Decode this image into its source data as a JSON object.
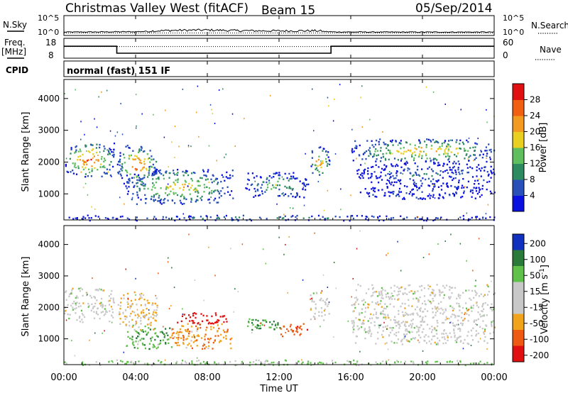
{
  "header": {
    "station": "Christmas Valley West (fitACF)",
    "beam": "Beam 15",
    "date": "05/Sep/2014"
  },
  "panel_labels": {
    "nsky": "N.Sky",
    "nsearch": "N.Search",
    "freq": "Freq.",
    "freq_unit": "[MHz]",
    "nave": "Nave",
    "cpid": "CPID",
    "cpid_value": "normal (fast) 151 IF"
  },
  "axes": {
    "time_label": "Time UT",
    "time_ticks": [
      "00:00",
      "04:00",
      "08:00",
      "12:00",
      "16:00",
      "20:00",
      "00:00"
    ],
    "range_label": "Slant Range [km]",
    "range_ticks": [
      "1000",
      "2000",
      "3000",
      "4000"
    ],
    "noise_ticks_left": [
      "10^5",
      "10^0"
    ],
    "noise_ticks_right": [
      "10^5",
      "10^0"
    ],
    "freq_ticks_left": [
      "18",
      "8"
    ],
    "nave_ticks_right": [
      "60",
      "0"
    ]
  },
  "colors": {
    "power": [
      "#0a10e0",
      "#2850b8",
      "#2e8a60",
      "#5fbf5f",
      "#e8cf20",
      "#f39a20",
      "#f06010",
      "#e01010"
    ],
    "velocity": [
      "#1030c0",
      "#2a7a3a",
      "#5fc14a",
      "#c8c8c8",
      "#c8c8c8",
      "#f1a31b",
      "#ef5a12",
      "#e01010"
    ]
  },
  "colorbars": {
    "power": {
      "label": "Power [dB]",
      "ticks": [
        "4",
        "8",
        "12",
        "16",
        "20",
        "24",
        "28"
      ]
    },
    "velocity": {
      "label": "Velocity [m s",
      "label_sup": "-1",
      "label_end": "]",
      "ticks": [
        "200",
        "100",
        "50",
        "15",
        "-15",
        "-50",
        "-100",
        "-200"
      ]
    }
  },
  "chart_data": [
    {
      "type": "line",
      "name": "noise-panel",
      "x_range_hours": [
        0,
        24
      ],
      "series": [
        {
          "name": "N.Sky",
          "style": "solid",
          "x": [
            0,
            2,
            4,
            6,
            8,
            10,
            12,
            14,
            15,
            18,
            20,
            24
          ],
          "log10_y": [
            0.3,
            0.35,
            0.4,
            0.7,
            0.8,
            0.6,
            0.55,
            0.6,
            0.35,
            0.3,
            0.3,
            0.3
          ]
        },
        {
          "name": "N.Search",
          "style": "dotted",
          "x": [
            0,
            24
          ],
          "log10_y": [
            0.1,
            0.1
          ]
        }
      ]
    },
    {
      "type": "line",
      "name": "frequency-panel",
      "x_range_hours": [
        0,
        24
      ],
      "ylim_freq": [
        8,
        18
      ],
      "ylim_nave": [
        0,
        60
      ],
      "series": [
        {
          "name": "Freq.",
          "style": "solid",
          "x": [
            0,
            2.95,
            2.95,
            14.9,
            14.9,
            24
          ],
          "y": [
            14,
            14,
            10.5,
            10.5,
            14,
            14
          ]
        },
        {
          "name": "Nave",
          "style": "dotted",
          "x": [
            0,
            24
          ],
          "y": [
            35,
            35
          ]
        }
      ]
    },
    {
      "type": "heatmap",
      "name": "power-panel",
      "xlabel": "Time UT",
      "ylabel": "Slant Range [km]",
      "xlim_hours": [
        0,
        24
      ],
      "ylim_km": [
        180,
        4600
      ],
      "zlabel": "Power [dB]",
      "zlim": [
        0,
        32
      ],
      "regions": [
        {
          "x0": 0.0,
          "x1": 2.8,
          "y0": 1550,
          "y1": 2650,
          "peak_db": 30
        },
        {
          "x0": 2.95,
          "x1": 5.2,
          "y0": 1300,
          "y1": 2550,
          "peak_db": 29
        },
        {
          "x0": 3.4,
          "x1": 9.4,
          "y0": 700,
          "y1": 1800,
          "peak_db": 22
        },
        {
          "x0": 10.0,
          "x1": 13.6,
          "y0": 900,
          "y1": 1700,
          "peak_db": 14
        },
        {
          "x0": 13.7,
          "x1": 14.8,
          "y0": 1600,
          "y1": 2500,
          "peak_db": 26
        },
        {
          "x0": 16.0,
          "x1": 24.0,
          "y0": 2000,
          "y1": 2750,
          "peak_db": 24
        },
        {
          "x0": 16.3,
          "x1": 24.0,
          "y0": 1300,
          "y1": 2000,
          "peak_db": 8
        },
        {
          "x0": 16.5,
          "x1": 24.0,
          "y0": 850,
          "y1": 1300,
          "peak_db": 6
        },
        {
          "x0": 0.0,
          "x1": 24.0,
          "y0": 180,
          "y1": 350,
          "peak_db": 10
        }
      ]
    },
    {
      "type": "heatmap",
      "name": "velocity-panel",
      "xlabel": "Time UT",
      "ylabel": "Slant Range [km]",
      "xlim_hours": [
        0,
        24
      ],
      "ylim_km": [
        180,
        4600
      ],
      "zlabel": "Velocity [m s-1]",
      "zlim": [
        -250,
        250
      ],
      "regions": [
        {
          "x0": 0.0,
          "x1": 2.8,
          "y0": 1550,
          "y1": 2650,
          "v": 0
        },
        {
          "x0": 2.95,
          "x1": 5.2,
          "y0": 1300,
          "y1": 2550,
          "v": -30
        },
        {
          "x0": 6.2,
          "x1": 9.3,
          "y0": 1500,
          "y1": 1850,
          "v": -220
        },
        {
          "x0": 3.4,
          "x1": 6.0,
          "y0": 700,
          "y1": 1500,
          "v": 60
        },
        {
          "x0": 5.8,
          "x1": 9.4,
          "y0": 700,
          "y1": 1500,
          "v": -60
        },
        {
          "x0": 10.0,
          "x1": 12.2,
          "y0": 1300,
          "y1": 1700,
          "v": 70
        },
        {
          "x0": 11.8,
          "x1": 13.6,
          "y0": 1100,
          "y1": 1500,
          "v": -120
        },
        {
          "x0": 13.7,
          "x1": 14.8,
          "y0": 1600,
          "y1": 2500,
          "v": 0
        },
        {
          "x0": 16.0,
          "x1": 24.0,
          "y0": 850,
          "y1": 2750,
          "v": 0
        },
        {
          "x0": 0.0,
          "x1": 24.0,
          "y0": 180,
          "y1": 350,
          "v": 40
        }
      ]
    }
  ]
}
